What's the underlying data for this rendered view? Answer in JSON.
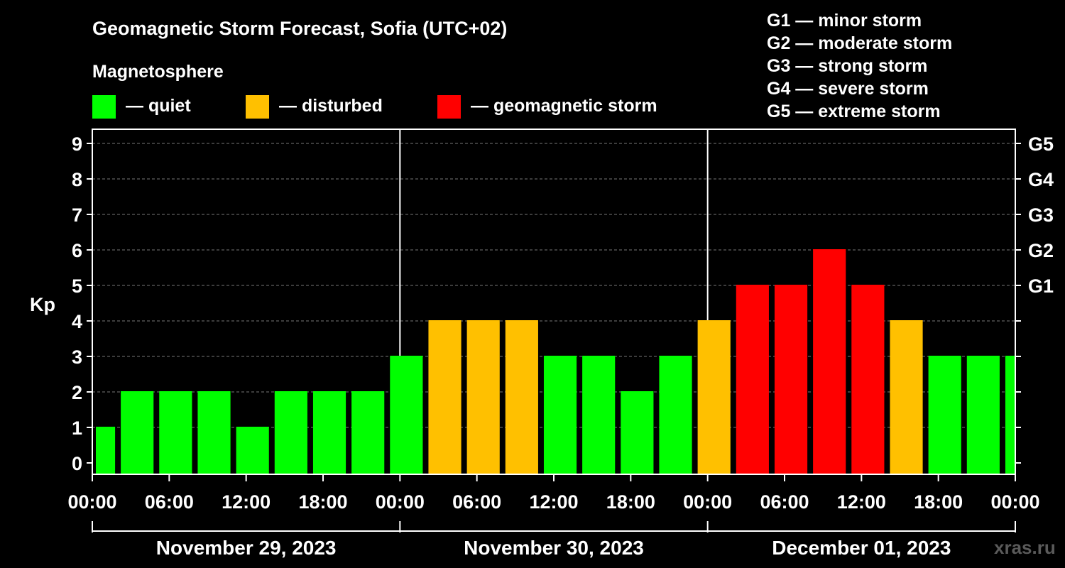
{
  "title": "Geomagnetic Storm Forecast, Sofia (UTC+02)",
  "legend": {
    "heading": "Magnetosphere",
    "items": [
      {
        "label": "— quiet",
        "color": "#00ff00"
      },
      {
        "label": "— disturbed",
        "color": "#ffc000"
      },
      {
        "label": "— geomagnetic storm",
        "color": "#ff0000"
      }
    ],
    "scale": [
      "G1 — minor storm",
      "G2 — moderate storm",
      "G3 — strong storm",
      "G4 — severe storm",
      "G5 — extreme storm"
    ]
  },
  "watermark": "xras.ru",
  "chart_data": {
    "type": "bar",
    "ylabel": "Kp",
    "ylim": [
      0,
      9
    ],
    "yticks": [
      "0",
      "1",
      "2",
      "3",
      "4",
      "5",
      "6",
      "7",
      "8",
      "9"
    ],
    "right_ticks": [
      {
        "value": 5,
        "label": "G1"
      },
      {
        "value": 6,
        "label": "G2"
      },
      {
        "value": 7,
        "label": "G3"
      },
      {
        "value": 8,
        "label": "G4"
      },
      {
        "value": 9,
        "label": "G5"
      }
    ],
    "x_hours_range": [
      0,
      72
    ],
    "xticks": [
      {
        "hour": 0,
        "label": "00:00"
      },
      {
        "hour": 6,
        "label": "06:00"
      },
      {
        "hour": 12,
        "label": "12:00"
      },
      {
        "hour": 18,
        "label": "18:00"
      },
      {
        "hour": 24,
        "label": "00:00"
      },
      {
        "hour": 30,
        "label": "06:00"
      },
      {
        "hour": 36,
        "label": "12:00"
      },
      {
        "hour": 42,
        "label": "18:00"
      },
      {
        "hour": 48,
        "label": "00:00"
      },
      {
        "hour": 54,
        "label": "06:00"
      },
      {
        "hour": 60,
        "label": "12:00"
      },
      {
        "hour": 66,
        "label": "18:00"
      },
      {
        "hour": 72,
        "label": "00:00"
      }
    ],
    "days": [
      {
        "label": "November 29, 2023",
        "start_hour": 0,
        "end_hour": 24
      },
      {
        "label": "November 30, 2023",
        "start_hour": 24,
        "end_hour": 48
      },
      {
        "label": "December 01, 2023",
        "start_hour": 48,
        "end_hour": 72
      }
    ],
    "colors": {
      "quiet": "#00ff00",
      "disturbed": "#ffc000",
      "storm": "#ff0000"
    },
    "bars": [
      {
        "start_hour": 0,
        "end_hour": 2,
        "kp": 1
      },
      {
        "start_hour": 2,
        "end_hour": 5,
        "kp": 2
      },
      {
        "start_hour": 5,
        "end_hour": 8,
        "kp": 2
      },
      {
        "start_hour": 8,
        "end_hour": 11,
        "kp": 2
      },
      {
        "start_hour": 11,
        "end_hour": 14,
        "kp": 1
      },
      {
        "start_hour": 14,
        "end_hour": 17,
        "kp": 2
      },
      {
        "start_hour": 17,
        "end_hour": 20,
        "kp": 2
      },
      {
        "start_hour": 20,
        "end_hour": 23,
        "kp": 2
      },
      {
        "start_hour": 23,
        "end_hour": 26,
        "kp": 3
      },
      {
        "start_hour": 26,
        "end_hour": 29,
        "kp": 4
      },
      {
        "start_hour": 29,
        "end_hour": 32,
        "kp": 4
      },
      {
        "start_hour": 32,
        "end_hour": 35,
        "kp": 4
      },
      {
        "start_hour": 35,
        "end_hour": 38,
        "kp": 3
      },
      {
        "start_hour": 38,
        "end_hour": 41,
        "kp": 3
      },
      {
        "start_hour": 41,
        "end_hour": 44,
        "kp": 2
      },
      {
        "start_hour": 44,
        "end_hour": 47,
        "kp": 3
      },
      {
        "start_hour": 47,
        "end_hour": 50,
        "kp": 4
      },
      {
        "start_hour": 50,
        "end_hour": 53,
        "kp": 5
      },
      {
        "start_hour": 53,
        "end_hour": 56,
        "kp": 5
      },
      {
        "start_hour": 56,
        "end_hour": 59,
        "kp": 6
      },
      {
        "start_hour": 59,
        "end_hour": 62,
        "kp": 5
      },
      {
        "start_hour": 62,
        "end_hour": 65,
        "kp": 4
      },
      {
        "start_hour": 65,
        "end_hour": 68,
        "kp": 3
      },
      {
        "start_hour": 68,
        "end_hour": 71,
        "kp": 3
      },
      {
        "start_hour": 71,
        "end_hour": 72,
        "kp": 3
      }
    ]
  }
}
